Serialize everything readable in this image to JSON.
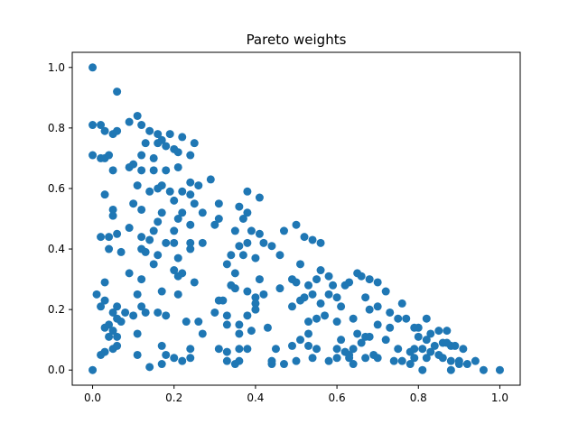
{
  "chart_data": {
    "type": "scatter",
    "title": "Pareto weights",
    "xlabel": "",
    "ylabel": "",
    "xlim": [
      -0.05,
      1.05
    ],
    "ylim": [
      -0.05,
      1.05
    ],
    "xticks": [
      "0.0",
      "0.2",
      "0.4",
      "0.6",
      "0.8",
      "1.0"
    ],
    "yticks": [
      "0.0",
      "0.2",
      "0.4",
      "0.6",
      "0.8",
      "1.0"
    ],
    "grid": false,
    "marker_color": "#1f77b4",
    "series": [
      {
        "points": [
          [
            0.0,
            1.0
          ],
          [
            0.06,
            0.92
          ],
          [
            0.0,
            0.81
          ],
          [
            0.02,
            0.81
          ],
          [
            0.03,
            0.79
          ],
          [
            0.05,
            0.78
          ],
          [
            0.06,
            0.79
          ],
          [
            0.09,
            0.82
          ],
          [
            0.11,
            0.84
          ],
          [
            0.12,
            0.81
          ],
          [
            0.14,
            0.79
          ],
          [
            0.16,
            0.78
          ],
          [
            0.17,
            0.76
          ],
          [
            0.19,
            0.78
          ],
          [
            0.22,
            0.77
          ],
          [
            0.25,
            0.75
          ],
          [
            0.13,
            0.75
          ],
          [
            0.16,
            0.75
          ],
          [
            0.18,
            0.74
          ],
          [
            0.2,
            0.73
          ],
          [
            0.21,
            0.72
          ],
          [
            0.24,
            0.71
          ],
          [
            0.0,
            0.71
          ],
          [
            0.02,
            0.7
          ],
          [
            0.03,
            0.7
          ],
          [
            0.04,
            0.71
          ],
          [
            0.12,
            0.71
          ],
          [
            0.15,
            0.7
          ],
          [
            0.09,
            0.67
          ],
          [
            0.1,
            0.68
          ],
          [
            0.12,
            0.66
          ],
          [
            0.15,
            0.66
          ],
          [
            0.18,
            0.66
          ],
          [
            0.21,
            0.67
          ],
          [
            0.05,
            0.66
          ],
          [
            0.29,
            0.63
          ],
          [
            0.24,
            0.62
          ],
          [
            0.26,
            0.61
          ],
          [
            0.17,
            0.61
          ],
          [
            0.11,
            0.61
          ],
          [
            0.03,
            0.58
          ],
          [
            0.14,
            0.59
          ],
          [
            0.16,
            0.6
          ],
          [
            0.19,
            0.59
          ],
          [
            0.22,
            0.59
          ],
          [
            0.24,
            0.58
          ],
          [
            0.1,
            0.55
          ],
          [
            0.12,
            0.53
          ],
          [
            0.05,
            0.53
          ],
          [
            0.05,
            0.51
          ],
          [
            0.2,
            0.56
          ],
          [
            0.25,
            0.55
          ],
          [
            0.31,
            0.55
          ],
          [
            0.38,
            0.59
          ],
          [
            0.41,
            0.57
          ],
          [
            0.22,
            0.52
          ],
          [
            0.17,
            0.52
          ],
          [
            0.21,
            0.5
          ],
          [
            0.27,
            0.52
          ],
          [
            0.36,
            0.54
          ],
          [
            0.38,
            0.52
          ],
          [
            0.3,
            0.48
          ],
          [
            0.31,
            0.5
          ],
          [
            0.37,
            0.5
          ],
          [
            0.09,
            0.47
          ],
          [
            0.02,
            0.44
          ],
          [
            0.04,
            0.44
          ],
          [
            0.06,
            0.45
          ],
          [
            0.12,
            0.44
          ],
          [
            0.15,
            0.46
          ],
          [
            0.16,
            0.49
          ],
          [
            0.2,
            0.46
          ],
          [
            0.24,
            0.48
          ],
          [
            0.35,
            0.46
          ],
          [
            0.39,
            0.46
          ],
          [
            0.41,
            0.45
          ],
          [
            0.47,
            0.46
          ],
          [
            0.5,
            0.48
          ],
          [
            0.52,
            0.44
          ],
          [
            0.54,
            0.43
          ],
          [
            0.56,
            0.42
          ],
          [
            0.14,
            0.43
          ],
          [
            0.18,
            0.42
          ],
          [
            0.2,
            0.42
          ],
          [
            0.24,
            0.42
          ],
          [
            0.27,
            0.42
          ],
          [
            0.36,
            0.41
          ],
          [
            0.38,
            0.42
          ],
          [
            0.42,
            0.42
          ],
          [
            0.44,
            0.41
          ],
          [
            0.46,
            0.38
          ],
          [
            0.04,
            0.4
          ],
          [
            0.07,
            0.39
          ],
          [
            0.12,
            0.4
          ],
          [
            0.13,
            0.39
          ],
          [
            0.16,
            0.38
          ],
          [
            0.21,
            0.37
          ],
          [
            0.24,
            0.4
          ],
          [
            0.34,
            0.38
          ],
          [
            0.37,
            0.38
          ],
          [
            0.4,
            0.37
          ],
          [
            0.33,
            0.35
          ],
          [
            0.35,
            0.32
          ],
          [
            0.51,
            0.35
          ],
          [
            0.15,
            0.35
          ],
          [
            0.2,
            0.33
          ],
          [
            0.22,
            0.32
          ],
          [
            0.25,
            0.29
          ],
          [
            0.21,
            0.31
          ],
          [
            0.12,
            0.3
          ],
          [
            0.09,
            0.32
          ],
          [
            0.03,
            0.29
          ],
          [
            0.41,
            0.3
          ],
          [
            0.49,
            0.3
          ],
          [
            0.5,
            0.29
          ],
          [
            0.53,
            0.28
          ],
          [
            0.55,
            0.3
          ],
          [
            0.56,
            0.33
          ],
          [
            0.58,
            0.31
          ],
          [
            0.59,
            0.28
          ],
          [
            0.62,
            0.28
          ],
          [
            0.63,
            0.29
          ],
          [
            0.65,
            0.32
          ],
          [
            0.66,
            0.31
          ],
          [
            0.68,
            0.3
          ],
          [
            0.7,
            0.29
          ],
          [
            0.72,
            0.26
          ],
          [
            0.76,
            0.22
          ],
          [
            0.17,
            0.26
          ],
          [
            0.21,
            0.25
          ],
          [
            0.34,
            0.28
          ],
          [
            0.35,
            0.27
          ],
          [
            0.38,
            0.26
          ],
          [
            0.4,
            0.24
          ],
          [
            0.42,
            0.25
          ],
          [
            0.46,
            0.27
          ],
          [
            0.01,
            0.25
          ],
          [
            0.03,
            0.23
          ],
          [
            0.11,
            0.25
          ],
          [
            0.12,
            0.21
          ],
          [
            0.02,
            0.21
          ],
          [
            0.06,
            0.21
          ],
          [
            0.13,
            0.19
          ],
          [
            0.08,
            0.19
          ],
          [
            0.16,
            0.19
          ],
          [
            0.18,
            0.18
          ],
          [
            0.31,
            0.23
          ],
          [
            0.32,
            0.23
          ],
          [
            0.4,
            0.22
          ],
          [
            0.51,
            0.23
          ],
          [
            0.52,
            0.24
          ],
          [
            0.54,
            0.25
          ],
          [
            0.56,
            0.22
          ],
          [
            0.58,
            0.25
          ],
          [
            0.6,
            0.24
          ],
          [
            0.61,
            0.21
          ],
          [
            0.67,
            0.24
          ],
          [
            0.68,
            0.2
          ],
          [
            0.7,
            0.21
          ],
          [
            0.73,
            0.19
          ],
          [
            0.75,
            0.17
          ],
          [
            0.77,
            0.17
          ],
          [
            0.8,
            0.14
          ],
          [
            0.82,
            0.17
          ],
          [
            0.85,
            0.13
          ],
          [
            0.83,
            0.12
          ],
          [
            0.87,
            0.13
          ],
          [
            0.05,
            0.19
          ],
          [
            0.06,
            0.17
          ],
          [
            0.07,
            0.16
          ],
          [
            0.04,
            0.15
          ],
          [
            0.1,
            0.18
          ],
          [
            0.3,
            0.19
          ],
          [
            0.33,
            0.18
          ],
          [
            0.38,
            0.18
          ],
          [
            0.4,
            0.2
          ],
          [
            0.49,
            0.21
          ],
          [
            0.23,
            0.16
          ],
          [
            0.26,
            0.16
          ],
          [
            0.33,
            0.15
          ],
          [
            0.36,
            0.15
          ],
          [
            0.03,
            0.14
          ],
          [
            0.05,
            0.13
          ],
          [
            0.39,
            0.13
          ],
          [
            0.43,
            0.14
          ],
          [
            0.53,
            0.16
          ],
          [
            0.55,
            0.17
          ],
          [
            0.57,
            0.18
          ],
          [
            0.6,
            0.16
          ],
          [
            0.64,
            0.17
          ],
          [
            0.65,
            0.12
          ],
          [
            0.67,
            0.11
          ],
          [
            0.68,
            0.11
          ],
          [
            0.7,
            0.15
          ],
          [
            0.73,
            0.14
          ],
          [
            0.79,
            0.14
          ],
          [
            0.8,
            0.11
          ],
          [
            0.82,
            0.1
          ],
          [
            0.84,
            0.08
          ],
          [
            0.86,
            0.09
          ],
          [
            0.88,
            0.08
          ],
          [
            0.04,
            0.11
          ],
          [
            0.06,
            0.11
          ],
          [
            0.11,
            0.12
          ],
          [
            0.27,
            0.12
          ],
          [
            0.36,
            0.12
          ],
          [
            0.53,
            0.12
          ],
          [
            0.61,
            0.1
          ],
          [
            0.62,
            0.06
          ],
          [
            0.63,
            0.04
          ],
          [
            0.64,
            0.07
          ],
          [
            0.66,
            0.09
          ],
          [
            0.69,
            0.05
          ],
          [
            0.72,
            0.1
          ],
          [
            0.75,
            0.07
          ],
          [
            0.78,
            0.06
          ],
          [
            0.79,
            0.07
          ],
          [
            0.81,
            0.07
          ],
          [
            0.83,
            0.06
          ],
          [
            0.85,
            0.05
          ],
          [
            0.87,
            0.09
          ],
          [
            0.89,
            0.08
          ],
          [
            0.91,
            0.07
          ],
          [
            0.17,
            0.08
          ],
          [
            0.24,
            0.07
          ],
          [
            0.31,
            0.07
          ],
          [
            0.33,
            0.06
          ],
          [
            0.36,
            0.07
          ],
          [
            0.38,
            0.07
          ],
          [
            0.45,
            0.07
          ],
          [
            0.49,
            0.08
          ],
          [
            0.51,
            0.1
          ],
          [
            0.53,
            0.08
          ],
          [
            0.55,
            0.07
          ],
          [
            0.6,
            0.07
          ],
          [
            0.03,
            0.06
          ],
          [
            0.05,
            0.07
          ],
          [
            0.06,
            0.08
          ],
          [
            0.02,
            0.05
          ],
          [
            0.11,
            0.05
          ],
          [
            0.18,
            0.05
          ],
          [
            0.2,
            0.04
          ],
          [
            0.22,
            0.03
          ],
          [
            0.24,
            0.04
          ],
          [
            0.33,
            0.03
          ],
          [
            0.36,
            0.03
          ],
          [
            0.44,
            0.03
          ],
          [
            0.47,
            0.02
          ],
          [
            0.5,
            0.03
          ],
          [
            0.54,
            0.04
          ],
          [
            0.58,
            0.03
          ],
          [
            0.6,
            0.04
          ],
          [
            0.63,
            0.05
          ],
          [
            0.67,
            0.04
          ],
          [
            0.7,
            0.04
          ],
          [
            0.74,
            0.03
          ],
          [
            0.76,
            0.03
          ],
          [
            0.79,
            0.04
          ],
          [
            0.82,
            0.04
          ],
          [
            0.86,
            0.04
          ],
          [
            0.88,
            0.03
          ],
          [
            0.9,
            0.03
          ],
          [
            0.92,
            0.02
          ],
          [
            0.94,
            0.03
          ],
          [
            0.0,
            0.0
          ],
          [
            0.14,
            0.01
          ],
          [
            0.17,
            0.02
          ],
          [
            0.35,
            0.02
          ],
          [
            0.44,
            0.02
          ],
          [
            0.64,
            0.02
          ],
          [
            0.78,
            0.02
          ],
          [
            0.81,
            0.0
          ],
          [
            0.88,
            0.0
          ],
          [
            0.9,
            0.02
          ],
          [
            0.96,
            0.0
          ],
          [
            1.0,
            0.0
          ]
        ]
      }
    ]
  }
}
